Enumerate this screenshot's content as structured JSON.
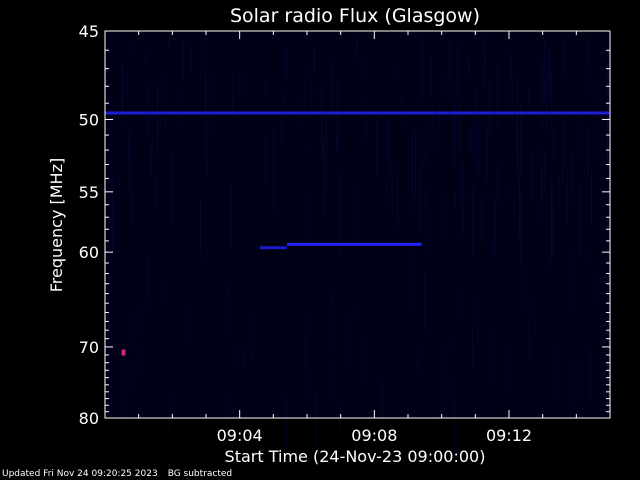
{
  "chart_data": {
    "type": "heatmap",
    "title": "Solar radio Flux (Glasgow)",
    "xlabel": "Start Time (24-Nov-23 09:00:00)",
    "ylabel": "Frequency [MHz]",
    "x_start_minutes": 0,
    "x_end_minutes": 15,
    "xlim_minutes": [
      0,
      15
    ],
    "xticks": [
      {
        "minute": 4,
        "label": "09:04"
      },
      {
        "minute": 8,
        "label": "09:08"
      },
      {
        "minute": 12,
        "label": "09:12"
      }
    ],
    "ylim_mhz": [
      45,
      80
    ],
    "yticks": [
      45,
      50,
      55,
      60,
      70,
      80
    ],
    "y_scale": "reciprocal",
    "features": [
      {
        "kind": "horizontal-band",
        "freq_mhz": 49.6,
        "minute_start": 0,
        "minute_end": 15,
        "color": "#1c1cd0"
      },
      {
        "kind": "horizontal-band",
        "freq_mhz": 59.3,
        "minute_start": 5.4,
        "minute_end": 9.4,
        "color": "#2222ff"
      },
      {
        "kind": "horizontal-band",
        "freq_mhz": 59.6,
        "minute_start": 4.6,
        "minute_end": 5.4,
        "color": "#1a1acc"
      },
      {
        "kind": "spot",
        "freq_mhz": 70.7,
        "minute": 0.55,
        "color": "#cc2a88"
      }
    ],
    "colors": {
      "background": "#000000",
      "plot_bg": "#000016",
      "axis": "#ffffff"
    }
  },
  "footer": {
    "updated": "Updated Fri Nov 24 09:20:25 2023",
    "note": "BG subtracted"
  }
}
